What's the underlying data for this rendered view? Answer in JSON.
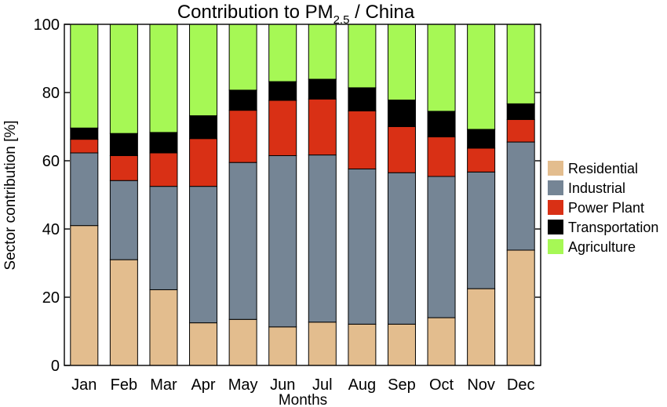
{
  "chart_data": {
    "type": "bar",
    "stacked": true,
    "title": {
      "main": "Contribution to PM",
      "subscript": "2.5",
      "suffix": " / China"
    },
    "xlabel": "Months",
    "ylabel": "Sector contribution [%]",
    "ylim": [
      0,
      100
    ],
    "yticks": [
      "0",
      "20",
      "40",
      "60",
      "80",
      "100"
    ],
    "grid": false,
    "legend_position": "right",
    "categories": [
      "Jan",
      "Feb",
      "Mar",
      "Apr",
      "May",
      "Jun",
      "Jul",
      "Aug",
      "Sep",
      "Oct",
      "Nov",
      "Dec"
    ],
    "series": [
      {
        "name": "Residential",
        "color": "#e3bd8e",
        "values": [
          41.0,
          31.0,
          22.2,
          12.5,
          13.5,
          11.3,
          12.7,
          12.1,
          12.1,
          14.0,
          22.5,
          33.8
        ]
      },
      {
        "name": "Industrial",
        "color": "#758595",
        "values": [
          21.3,
          23.2,
          30.3,
          40.0,
          46.0,
          50.2,
          49.0,
          45.5,
          44.4,
          41.4,
          34.2,
          31.7
        ]
      },
      {
        "name": "Power Plant",
        "color": "#d93015",
        "values": [
          4.0,
          7.3,
          9.8,
          14.0,
          15.3,
          16.2,
          16.4,
          17.0,
          13.5,
          11.6,
          7.0,
          6.6
        ]
      },
      {
        "name": "Transportation",
        "color": "#000000",
        "values": [
          3.3,
          6.5,
          6.0,
          6.7,
          5.9,
          5.5,
          5.8,
          6.8,
          7.8,
          7.5,
          5.5,
          4.6
        ]
      },
      {
        "name": "Agriculture",
        "color": "#a6f855",
        "values": [
          30.4,
          32.0,
          31.7,
          26.8,
          19.3,
          16.8,
          16.1,
          18.6,
          22.2,
          25.5,
          30.8,
          23.3
        ]
      }
    ]
  }
}
